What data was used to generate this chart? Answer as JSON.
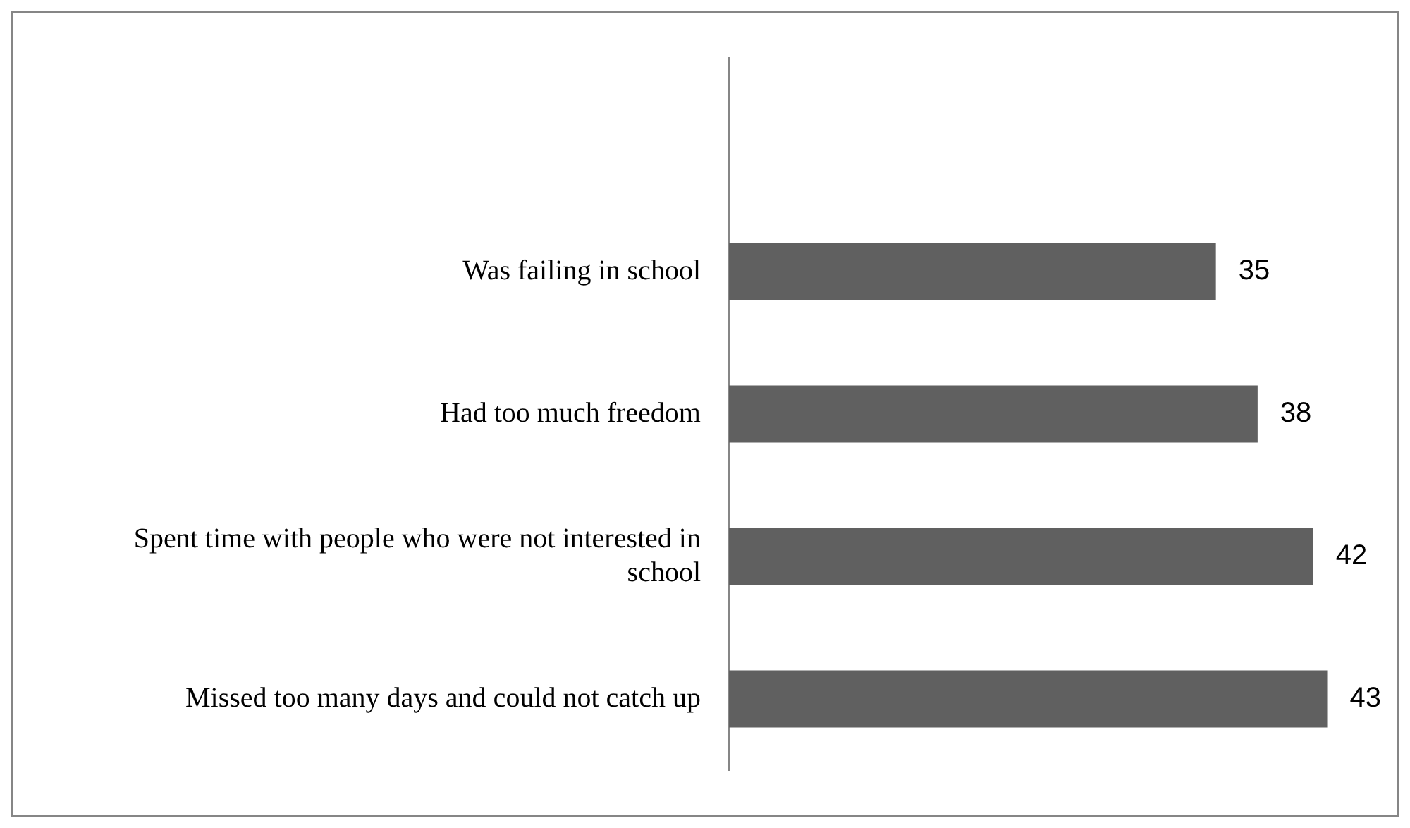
{
  "chart_data": {
    "type": "bar",
    "orientation": "horizontal",
    "categories": [
      null,
      "Was failing in school",
      "Had too much freedom",
      "Spent time with people who were not interested in school",
      "Missed too many days and could not catch up"
    ],
    "values": [
      null,
      35,
      38,
      42,
      43
    ],
    "color": "#606060",
    "data_labels": true,
    "grid": false,
    "legend": false
  }
}
